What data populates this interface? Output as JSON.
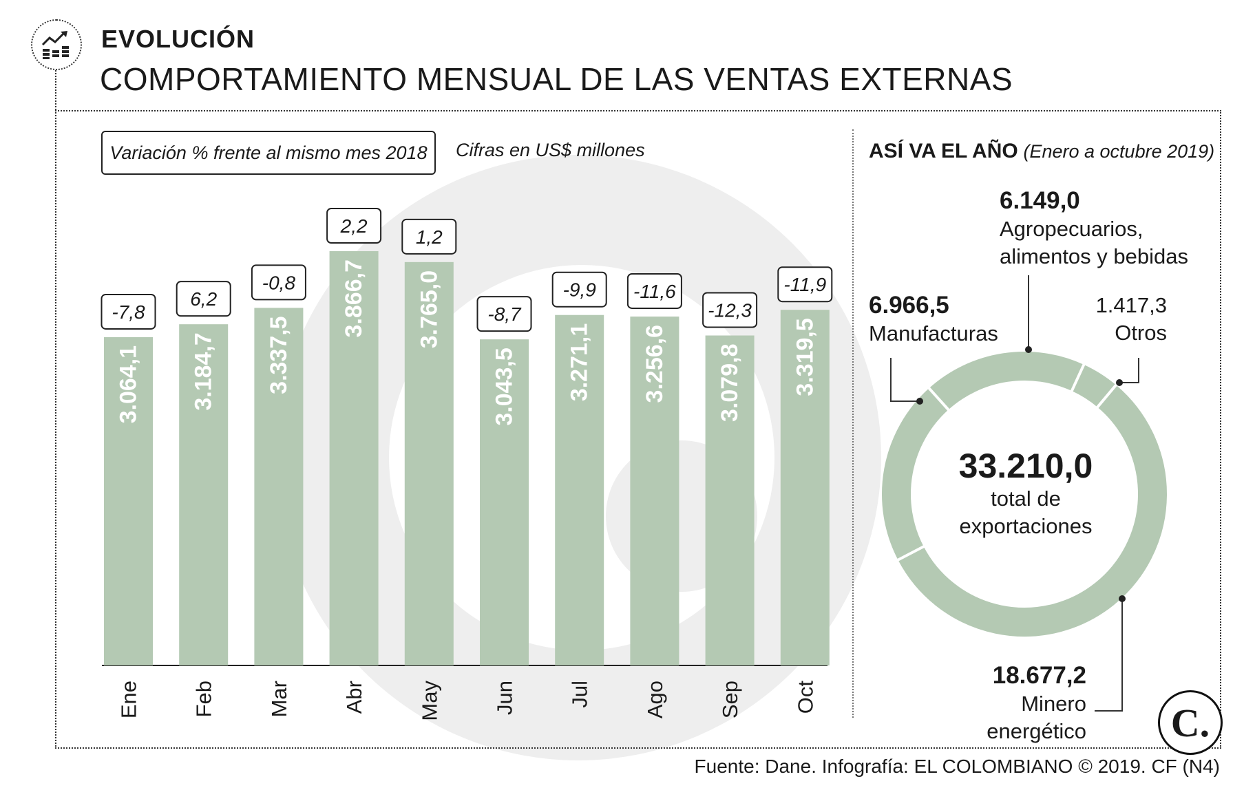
{
  "header": {
    "kicker": "EVOLUCIÓN",
    "title": "COMPORTAMIENTO MENSUAL DE LAS VENTAS EXTERNAS"
  },
  "legend": {
    "variation_label": "Variación % frente al mismo mes 2018",
    "units_label": "Cifras en US$ millones"
  },
  "colors": {
    "bar": "#b4c9b3",
    "text": "#1a1a1a",
    "watermark": "#eeeeee"
  },
  "chart_data": [
    {
      "type": "bar",
      "title": "",
      "categories": [
        "Ene",
        "Feb",
        "Mar",
        "Abr",
        "May",
        "Jun",
        "Jul",
        "Ago",
        "Sep",
        "Oct"
      ],
      "values": [
        3064.1,
        3184.7,
        3337.5,
        3866.7,
        3765.0,
        3043.5,
        3271.1,
        3256.6,
        3079.8,
        3319.5
      ],
      "value_labels": [
        "3.064,1",
        "3.184,7",
        "3.337,5",
        "3.866,7",
        "3.765,0",
        "3.043,5",
        "3.271,1",
        "3.256,6",
        "3.079,8",
        "3.319,5"
      ],
      "variation_labels": [
        "-7,8",
        "6,2",
        "-0,8",
        "2,2",
        "1,2",
        "-8,7",
        "-9,9",
        "-11,6",
        "-12,3",
        "-11,9"
      ],
      "ylim": [
        0,
        3866.7
      ],
      "xlabel": "",
      "ylabel": ""
    },
    {
      "type": "pie",
      "title": "ASÍ VA EL AÑO",
      "subtitle": "(Enero a octubre 2019)",
      "slices": [
        {
          "name": "Agropecuarios, alimentos y bebidas",
          "value": 6149.0,
          "value_label": "6.149,0"
        },
        {
          "name": "Otros",
          "value": 1417.3,
          "value_label": "1.417,3"
        },
        {
          "name": "Minero energético",
          "value": 18677.2,
          "value_label": "18.677,2"
        },
        {
          "name": "Manufacturas",
          "value": 6966.5,
          "value_label": "6.966,5"
        }
      ],
      "total_label": "33.210,0",
      "total_caption": "total de exportaciones"
    }
  ],
  "donut_labels": {
    "agro_value": "6.149,0",
    "agro_name_1": "Agropecuarios,",
    "agro_name_2": "alimentos y bebidas",
    "manu_value": "6.966,5",
    "manu_name": "Manufacturas",
    "otros_value": "1.417,3",
    "otros_name": "Otros",
    "minero_value": "18.677,2",
    "minero_name": "Minero energético",
    "total_value": "33.210,0",
    "total_line1": "total de",
    "total_line2": "exportaciones"
  },
  "right_panel": {
    "title": "ASÍ VA EL AÑO",
    "subtitle": "(Enero a octubre 2019)"
  },
  "footer": {
    "source": "Fuente: Dane. Infografía: EL COLOMBIANO © 2019. CF (N4)",
    "brand_letter": "C."
  }
}
